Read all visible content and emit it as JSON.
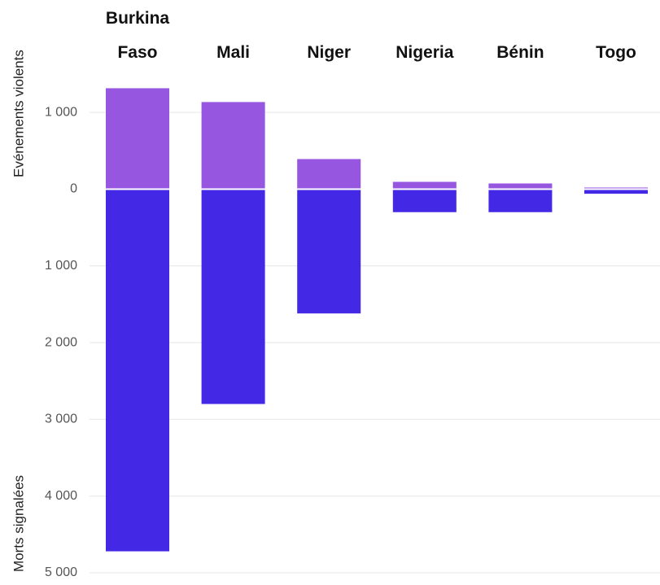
{
  "chart_data": {
    "type": "diverging-bar",
    "categories": [
      "Burkina Faso",
      "Mali",
      "Niger",
      "Nigeria",
      "Bénin",
      "Togo"
    ],
    "series": [
      {
        "name": "Evénements violents",
        "color": "#9656e0",
        "values": [
          1315,
          1135,
          392,
          95,
          74,
          21
        ]
      },
      {
        "name": "Morts signalées",
        "color": "#4329e6",
        "values": [
          -4720,
          -2800,
          -1620,
          -300,
          -300,
          -60
        ]
      }
    ],
    "ylim": [
      -5000,
      1500
    ],
    "yticks": [
      {
        "value": 1000,
        "label": "1 000"
      },
      0,
      {
        "value": -1000,
        "label": "1 000"
      },
      {
        "value": -2000,
        "label": "2 000"
      },
      {
        "value": -3000,
        "label": "3 000"
      },
      {
        "value": -4000,
        "label": "4 000"
      },
      {
        "value": -5000,
        "label": "5 000"
      }
    ],
    "grid": true
  }
}
